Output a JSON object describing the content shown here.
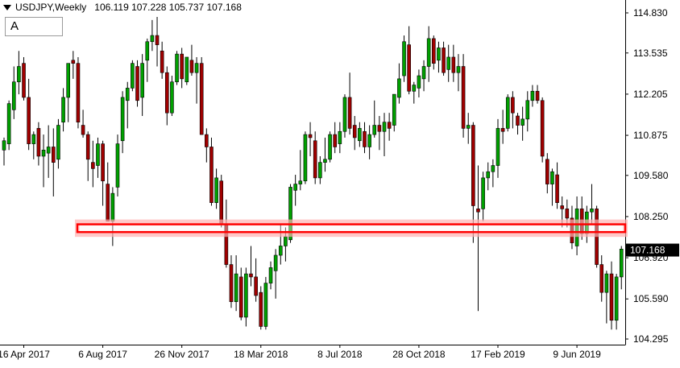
{
  "header": {
    "symbol_label": "USDJPY,Weekly",
    "ohlc_values": "106.119 107.228 105.737 107.168"
  },
  "object_button_label": "A",
  "price_tag": "107.168",
  "colors": {
    "bull": "#00a000",
    "bear": "#a00000",
    "zone_border": "#ff0000",
    "axis": "#000000",
    "price_tag_bg": "#000000"
  },
  "chart_data": {
    "type": "candlestick",
    "title": "",
    "xlabel": "",
    "ylabel": "",
    "ylim": [
      104.0,
      115.2
    ],
    "y_ticks": [
      "114.830",
      "113.535",
      "112.205",
      "110.875",
      "109.580",
      "108.250",
      "106.920",
      "105.590",
      "104.295"
    ],
    "x_ticks": [
      "16 Apr 2017",
      "6 Aug 2017",
      "26 Nov 2017",
      "18 Mar 2018",
      "8 Jul 2018",
      "28 Oct 2018",
      "17 Feb 2019",
      "9 Jun 2019"
    ],
    "x_tick_index": [
      4,
      20,
      36,
      52,
      68,
      84,
      100,
      116
    ],
    "current_price": 107.168,
    "horizontal_zone": {
      "low": 107.75,
      "high": 108.0
    },
    "series": [
      {
        "values": [
          [
            110.4,
            110.8,
            109.9,
            110.7
          ],
          [
            110.6,
            112.0,
            110.4,
            111.9
          ],
          [
            111.7,
            113.1,
            111.4,
            112.6
          ],
          [
            112.6,
            113.6,
            112.2,
            113.1
          ],
          [
            113.2,
            113.4,
            112.0,
            112.1
          ],
          [
            112.1,
            112.7,
            110.4,
            110.6
          ],
          [
            110.6,
            111.0,
            110.1,
            110.9
          ],
          [
            111.1,
            111.3,
            109.9,
            110.2
          ],
          [
            110.2,
            110.9,
            109.2,
            110.4
          ],
          [
            110.3,
            111.2,
            109.5,
            110.5
          ],
          [
            110.5,
            111.1,
            108.9,
            110.0
          ],
          [
            110.1,
            111.4,
            109.8,
            111.2
          ],
          [
            111.3,
            112.4,
            111.0,
            112.1
          ],
          [
            112.1,
            113.1,
            111.3,
            113.2
          ],
          [
            113.3,
            113.6,
            112.7,
            113.2
          ],
          [
            113.2,
            113.4,
            111.1,
            111.3
          ],
          [
            111.2,
            111.7,
            110.8,
            110.9
          ],
          [
            110.9,
            111.0,
            109.4,
            110.1
          ],
          [
            110.0,
            110.7,
            109.2,
            109.8
          ],
          [
            109.9,
            110.8,
            109.5,
            110.6
          ],
          [
            110.6,
            110.7,
            108.6,
            109.4
          ],
          [
            109.3,
            110.0,
            108.1,
            108.1
          ],
          [
            108.1,
            109.2,
            107.3,
            109.0
          ],
          [
            109.2,
            110.9,
            108.9,
            110.6
          ],
          [
            110.7,
            112.3,
            110.3,
            112.1
          ],
          [
            112.0,
            112.6,
            111.1,
            112.4
          ],
          [
            112.4,
            113.3,
            112.3,
            113.2
          ],
          [
            113.1,
            113.3,
            111.8,
            112.0
          ],
          [
            112.1,
            113.5,
            111.5,
            113.2
          ],
          [
            113.3,
            114.0,
            112.6,
            113.9
          ],
          [
            113.9,
            114.6,
            113.6,
            114.1
          ],
          [
            114.1,
            114.7,
            113.1,
            113.8
          ],
          [
            113.6,
            113.9,
            112.7,
            112.9
          ],
          [
            112.9,
            113.1,
            111.2,
            111.6
          ],
          [
            111.6,
            112.8,
            111.5,
            112.6
          ],
          [
            112.6,
            113.6,
            112.5,
            113.5
          ],
          [
            113.5,
            113.7,
            112.4,
            112.7
          ],
          [
            112.6,
            113.4,
            112.5,
            113.4
          ],
          [
            113.3,
            113.8,
            112.8,
            112.9
          ],
          [
            112.9,
            113.4,
            111.9,
            113.2
          ],
          [
            113.2,
            113.4,
            110.9,
            110.9
          ],
          [
            110.9,
            111.1,
            110.0,
            110.5
          ],
          [
            110.5,
            110.8,
            108.6,
            108.7
          ],
          [
            108.7,
            109.8,
            108.5,
            109.5
          ],
          [
            109.4,
            109.6,
            107.9,
            108.0
          ],
          [
            108.0,
            108.8,
            106.6,
            106.7
          ],
          [
            106.7,
            107.0,
            105.3,
            105.5
          ],
          [
            105.5,
            107.0,
            105.2,
            106.4
          ],
          [
            106.3,
            106.6,
            104.9,
            105.0
          ],
          [
            105.0,
            106.6,
            104.7,
            106.4
          ],
          [
            106.4,
            107.3,
            106.0,
            106.3
          ],
          [
            106.3,
            106.9,
            105.5,
            105.7
          ],
          [
            105.8,
            106.0,
            104.6,
            104.7
          ],
          [
            104.7,
            106.3,
            104.6,
            106.1
          ],
          [
            106.1,
            106.8,
            105.9,
            106.6
          ],
          [
            106.5,
            107.2,
            105.6,
            107.0
          ],
          [
            107.0,
            108.0,
            106.7,
            107.3
          ],
          [
            107.3,
            107.9,
            106.8,
            107.6
          ],
          [
            107.5,
            109.3,
            107.4,
            109.2
          ],
          [
            109.1,
            109.6,
            108.6,
            109.3
          ],
          [
            109.3,
            110.4,
            109.1,
            109.4
          ],
          [
            109.4,
            111.0,
            109.3,
            110.9
          ],
          [
            110.9,
            111.3,
            110.2,
            110.8
          ],
          [
            110.7,
            111.0,
            109.3,
            109.5
          ],
          [
            109.5,
            110.2,
            109.3,
            110.0
          ],
          [
            110.0,
            110.8,
            109.7,
            110.1
          ],
          [
            110.1,
            111.0,
            110.0,
            110.9
          ],
          [
            110.9,
            111.3,
            110.3,
            110.5
          ],
          [
            110.6,
            111.3,
            110.3,
            111.0
          ],
          [
            111.0,
            112.2,
            110.8,
            112.1
          ],
          [
            112.1,
            112.9,
            110.9,
            111.1
          ],
          [
            111.2,
            111.5,
            110.4,
            110.8
          ],
          [
            110.7,
            111.3,
            110.5,
            111.1
          ],
          [
            111.0,
            111.3,
            110.3,
            110.5
          ],
          [
            110.5,
            111.2,
            110.1,
            110.9
          ],
          [
            110.9,
            112.0,
            110.8,
            111.2
          ],
          [
            111.2,
            111.5,
            110.4,
            111.0
          ],
          [
            111.0,
            111.6,
            110.2,
            111.3
          ],
          [
            111.3,
            111.6,
            110.7,
            111.1
          ],
          [
            111.2,
            112.2,
            111.0,
            112.2
          ],
          [
            112.1,
            113.2,
            111.9,
            112.7
          ],
          [
            112.8,
            114.1,
            112.6,
            113.9
          ],
          [
            113.8,
            114.4,
            112.2,
            112.3
          ],
          [
            112.3,
            112.6,
            111.9,
            112.5
          ],
          [
            112.4,
            113.0,
            112.1,
            112.8
          ],
          [
            112.7,
            113.3,
            112.3,
            113.1
          ],
          [
            113.1,
            114.4,
            112.6,
            114.0
          ],
          [
            114.0,
            114.1,
            113.0,
            113.2
          ],
          [
            113.3,
            113.9,
            112.9,
            113.7
          ],
          [
            113.7,
            113.9,
            112.8,
            112.9
          ],
          [
            113.0,
            113.8,
            112.6,
            113.4
          ],
          [
            113.4,
            113.8,
            112.6,
            112.9
          ],
          [
            112.9,
            113.5,
            112.3,
            113.1
          ],
          [
            113.1,
            113.5,
            110.8,
            111.1
          ],
          [
            111.1,
            111.6,
            110.6,
            111.2
          ],
          [
            111.2,
            111.3,
            107.4,
            108.6
          ],
          [
            108.5,
            109.9,
            105.2,
            108.4
          ],
          [
            108.5,
            109.7,
            108.1,
            109.5
          ],
          [
            109.5,
            110.0,
            109.1,
            109.7
          ],
          [
            109.7,
            110.1,
            109.2,
            109.9
          ],
          [
            109.9,
            111.4,
            109.5,
            111.1
          ],
          [
            111.1,
            111.7,
            110.6,
            111.0
          ],
          [
            111.1,
            112.2,
            111.0,
            112.1
          ],
          [
            112.1,
            112.3,
            111.1,
            111.6
          ],
          [
            111.5,
            111.6,
            110.9,
            111.2
          ],
          [
            111.2,
            111.8,
            110.7,
            111.4
          ],
          [
            111.4,
            112.3,
            111.0,
            112.0
          ],
          [
            112.0,
            112.5,
            111.8,
            112.3
          ],
          [
            112.3,
            112.5,
            111.9,
            112.0
          ],
          [
            112.0,
            112.1,
            110.0,
            110.2
          ],
          [
            110.1,
            110.3,
            109.0,
            109.3
          ],
          [
            109.3,
            109.8,
            108.6,
            109.7
          ],
          [
            109.6,
            110.0,
            108.5,
            108.7
          ],
          [
            108.6,
            108.9,
            107.9,
            108.5
          ],
          [
            108.5,
            108.8,
            107.9,
            108.2
          ],
          [
            108.2,
            108.6,
            107.2,
            107.4
          ],
          [
            107.3,
            108.9,
            107.0,
            108.5
          ],
          [
            108.5,
            108.9,
            107.5,
            107.7
          ],
          [
            107.7,
            108.6,
            107.4,
            108.4
          ],
          [
            108.4,
            109.3,
            108.0,
            108.5
          ],
          [
            108.5,
            108.6,
            106.6,
            106.7
          ],
          [
            106.7,
            107.0,
            105.5,
            105.8
          ],
          [
            105.8,
            106.5,
            104.8,
            106.4
          ],
          [
            106.4,
            106.8,
            104.6,
            104.9
          ],
          [
            104.9,
            106.4,
            104.6,
            106.3
          ],
          [
            106.3,
            107.3,
            105.9,
            107.2
          ]
        ]
      }
    ]
  }
}
